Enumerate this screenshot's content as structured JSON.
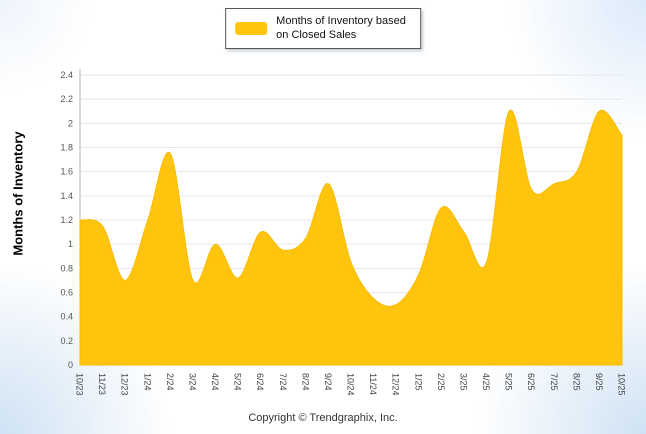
{
  "legend": {
    "line1": "Months of Inventory based",
    "line2": "on Closed Sales"
  },
  "y_axis_title": "Months of Inventory",
  "footer": {
    "copyright": "Copyright © Trendgraphix, Inc."
  },
  "colors": {
    "series_fill": "#FFC40D",
    "series_edge": "#F7BB00",
    "gridline": "#e6e6e6",
    "axis_line": "#b5b5b5",
    "tick_label": "#555555"
  },
  "chart_data": {
    "type": "area",
    "title": "",
    "xlabel": "",
    "ylabel": "Months of Inventory",
    "legend_entries": [
      "Months of Inventory based on Closed Sales"
    ],
    "legend_position": "top-center",
    "grid": true,
    "ylim": [
      0,
      2.4
    ],
    "ytick_step": 0.2,
    "categories": [
      "10/23",
      "11/23",
      "12/23",
      "1/24",
      "2/24",
      "3/24",
      "4/24",
      "5/24",
      "6/24",
      "7/24",
      "8/24",
      "9/24",
      "10/24",
      "11/24",
      "12/24",
      "1/25",
      "2/25",
      "3/25",
      "4/25",
      "5/25",
      "6/25",
      "7/25",
      "8/25",
      "9/25",
      "10/25"
    ],
    "values": [
      1.2,
      1.15,
      0.7,
      1.2,
      1.75,
      0.7,
      1.0,
      0.72,
      1.1,
      0.95,
      1.05,
      1.5,
      0.85,
      0.55,
      0.5,
      0.75,
      1.3,
      1.1,
      0.85,
      2.1,
      1.45,
      1.5,
      1.6,
      2.1,
      1.9
    ]
  }
}
